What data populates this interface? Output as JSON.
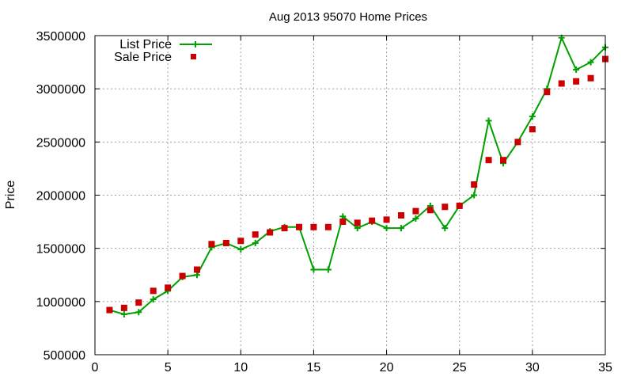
{
  "chart_data": {
    "type": "line",
    "title": "Aug 2013 95070 Home Prices",
    "xlabel": "",
    "ylabel": "Price",
    "xlim": [
      0,
      35
    ],
    "ylim": [
      500000,
      3500000
    ],
    "grid": true,
    "legend_position": "top-left",
    "x_ticks": [
      "0",
      "5",
      "10",
      "15",
      "20",
      "25",
      "30",
      "35"
    ],
    "y_ticks": [
      "500000",
      "1000000",
      "1500000",
      "2000000",
      "2500000",
      "3000000",
      "3500000"
    ],
    "x": [
      1,
      2,
      3,
      4,
      5,
      6,
      7,
      8,
      9,
      10,
      11,
      12,
      13,
      14,
      15,
      16,
      17,
      18,
      19,
      20,
      21,
      22,
      23,
      24,
      25,
      26,
      27,
      28,
      29,
      30,
      31,
      32,
      33,
      34,
      35
    ],
    "series": [
      {
        "name": "List Price",
        "style": "line+cross",
        "color": "#00a000",
        "values": [
          920000,
          880000,
          900000,
          1020000,
          1100000,
          1230000,
          1250000,
          1510000,
          1550000,
          1490000,
          1550000,
          1660000,
          1700000,
          1700000,
          1300000,
          1300000,
          1800000,
          1690000,
          1750000,
          1690000,
          1690000,
          1780000,
          1900000,
          1690000,
          1900000,
          2000000,
          2700000,
          2300000,
          2500000,
          2740000,
          3000000,
          3480000,
          3180000,
          3250000,
          3390000
        ]
      },
      {
        "name": "Sale Price",
        "style": "square",
        "color": "#cc0000",
        "values": [
          920000,
          940000,
          990000,
          1100000,
          1130000,
          1240000,
          1300000,
          1540000,
          1550000,
          1570000,
          1630000,
          1650000,
          1690000,
          1700000,
          1700000,
          1700000,
          1750000,
          1740000,
          1760000,
          1770000,
          1810000,
          1850000,
          1860000,
          1890000,
          1900000,
          2100000,
          2330000,
          2330000,
          2500000,
          2620000,
          2970000,
          3050000,
          3070000,
          3100000,
          3280000
        ]
      }
    ]
  }
}
